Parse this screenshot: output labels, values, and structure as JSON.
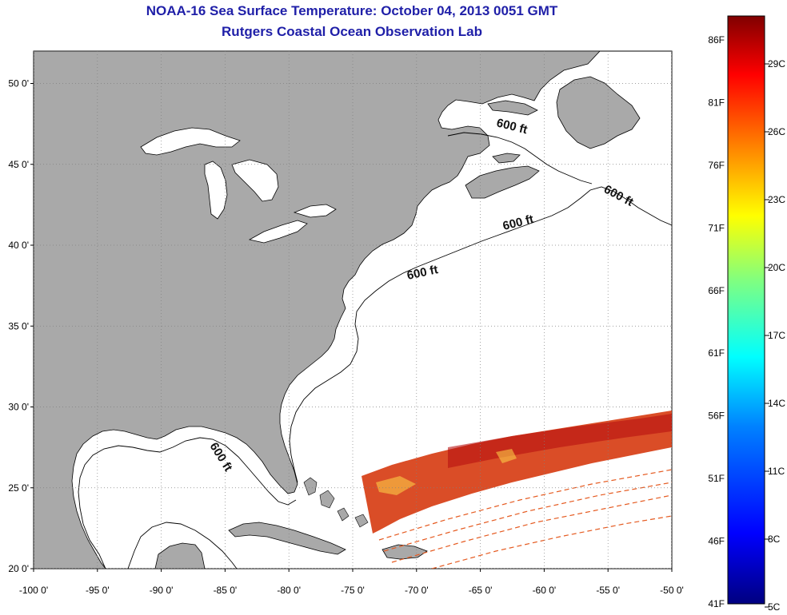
{
  "header": {
    "title": "NOAA-16 Sea Surface Temperature:  October 04, 2013 0051 GMT",
    "subtitle": "Rutgers Coastal Ocean Observation Lab"
  },
  "map": {
    "lon_range": [
      -100,
      -50
    ],
    "lat_range": [
      20,
      52
    ],
    "lat_ticks": [
      {
        "value": 50,
        "label": "50 0'"
      },
      {
        "value": 45,
        "label": "45 0'"
      },
      {
        "value": 40,
        "label": "40 0'"
      },
      {
        "value": 35,
        "label": "35 0'"
      },
      {
        "value": 30,
        "label": "30 0'"
      },
      {
        "value": 25,
        "label": "25 0'"
      },
      {
        "value": 20,
        "label": "20 0'"
      }
    ],
    "lon_ticks": [
      {
        "value": -100,
        "label": "-100 0'"
      },
      {
        "value": -95,
        "label": "-95 0'"
      },
      {
        "value": -90,
        "label": "-90 0'"
      },
      {
        "value": -85,
        "label": "-85 0'"
      },
      {
        "value": -80,
        "label": "-80 0'"
      },
      {
        "value": -75,
        "label": "-75 0'"
      },
      {
        "value": -70,
        "label": "-70 0'"
      },
      {
        "value": -65,
        "label": "-65 0'"
      },
      {
        "value": -60,
        "label": "-60 0'"
      },
      {
        "value": -55,
        "label": "-55 0'"
      },
      {
        "value": -50,
        "label": "-50 0'"
      }
    ],
    "isobath_label": "600 ft",
    "colors": {
      "land": "#a9a9a9",
      "ocean": "#ffffff",
      "coastline": "#000000",
      "grid": "#808080",
      "title": "#1f1fa8"
    }
  },
  "colorbar": {
    "f_labels": [
      "86F",
      "81F",
      "76F",
      "71F",
      "66F",
      "61F",
      "56F",
      "51F",
      "46F",
      "41F"
    ],
    "c_labels": [
      "29C",
      "26C",
      "23C",
      "20C",
      "17C",
      "14C",
      "11C",
      "8C",
      "5C"
    ],
    "colors": [
      "#000080",
      "#0000ff",
      "#0080ff",
      "#00ffff",
      "#80ff80",
      "#ffff00",
      "#ff8000",
      "#ff0000",
      "#800000"
    ]
  }
}
